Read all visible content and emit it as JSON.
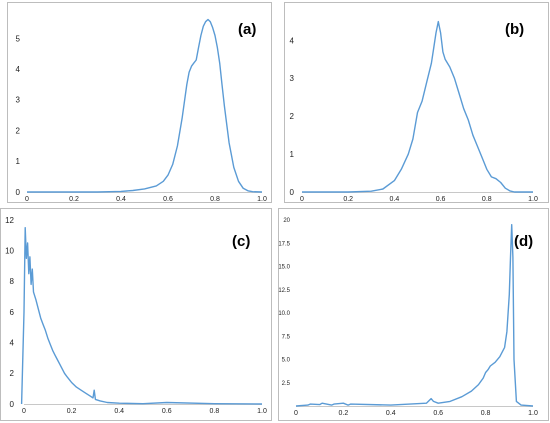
{
  "chart_data": [
    {
      "type": "line",
      "panel_label": "(a)",
      "xlim": [
        0,
        1.0
      ],
      "ylim": [
        0,
        5.8
      ],
      "x_ticks": [
        0,
        0.2,
        0.4,
        0.6,
        0.8,
        1.0
      ],
      "x_tick_labels": [
        "0",
        "0.2",
        "0.4",
        "0.6",
        "0.8",
        "1.0"
      ],
      "y_ticks": [
        0,
        1,
        2,
        3,
        4,
        5
      ],
      "y_tick_labels": [
        "0",
        "1",
        "2",
        "3",
        "4",
        "5"
      ],
      "grid": false,
      "series": [
        {
          "color": "#5b9bd5",
          "x": [
            0.0,
            0.3,
            0.4,
            0.45,
            0.5,
            0.55,
            0.58,
            0.6,
            0.62,
            0.64,
            0.66,
            0.68,
            0.69,
            0.7,
            0.71,
            0.72,
            0.73,
            0.74,
            0.75,
            0.76,
            0.77,
            0.78,
            0.79,
            0.8,
            0.81,
            0.82,
            0.83,
            0.84,
            0.86,
            0.88,
            0.9,
            0.92,
            0.94,
            0.96,
            1.0
          ],
          "y": [
            0.0,
            0.0,
            0.02,
            0.05,
            0.1,
            0.2,
            0.35,
            0.55,
            0.9,
            1.5,
            2.4,
            3.5,
            3.9,
            4.1,
            4.2,
            4.3,
            4.7,
            5.1,
            5.4,
            5.55,
            5.62,
            5.55,
            5.35,
            5.1,
            4.7,
            4.2,
            3.5,
            2.8,
            1.6,
            0.8,
            0.35,
            0.12,
            0.04,
            0.01,
            0.0
          ]
        }
      ]
    },
    {
      "type": "line",
      "panel_label": "(b)",
      "xlim": [
        0,
        1.0
      ],
      "ylim": [
        0,
        4.7
      ],
      "x_ticks": [
        0,
        0.2,
        0.4,
        0.6,
        0.8,
        1.0
      ],
      "x_tick_labels": [
        "0",
        "0.2",
        "0.4",
        "0.6",
        "0.8",
        "1.0"
      ],
      "y_ticks": [
        0,
        1,
        2,
        3,
        4
      ],
      "y_tick_labels": [
        "0",
        "1",
        "2",
        "3",
        "4"
      ],
      "grid": false,
      "series": [
        {
          "color": "#5b9bd5",
          "x": [
            0.0,
            0.2,
            0.3,
            0.35,
            0.4,
            0.43,
            0.46,
            0.48,
            0.5,
            0.52,
            0.54,
            0.56,
            0.57,
            0.58,
            0.59,
            0.6,
            0.61,
            0.62,
            0.64,
            0.66,
            0.68,
            0.7,
            0.72,
            0.74,
            0.76,
            0.78,
            0.8,
            0.82,
            0.84,
            0.86,
            0.88,
            0.9,
            0.92,
            1.0
          ],
          "y": [
            0.0,
            0.0,
            0.02,
            0.08,
            0.3,
            0.6,
            1.0,
            1.4,
            2.1,
            2.4,
            2.9,
            3.4,
            3.8,
            4.2,
            4.5,
            4.2,
            3.7,
            3.5,
            3.3,
            3.0,
            2.6,
            2.2,
            1.9,
            1.5,
            1.2,
            0.9,
            0.6,
            0.4,
            0.35,
            0.25,
            0.1,
            0.03,
            0.0,
            0.0
          ]
        }
      ]
    },
    {
      "type": "line",
      "panel_label": "(c)",
      "xlim": [
        0,
        1.0
      ],
      "ylim": [
        0,
        12
      ],
      "x_ticks": [
        0,
        0.2,
        0.4,
        0.6,
        0.8,
        1.0
      ],
      "x_tick_labels": [
        "0",
        "0.2",
        "0.4",
        "0.6",
        "0.8",
        "1.0"
      ],
      "y_ticks": [
        0,
        2,
        4,
        6,
        8,
        10,
        12
      ],
      "y_tick_labels": [
        "0",
        "2",
        "4",
        "6",
        "8",
        "10",
        "12"
      ],
      "grid": false,
      "series": [
        {
          "color": "#5b9bd5",
          "x": [
            -0.01,
            0.0,
            0.005,
            0.01,
            0.015,
            0.02,
            0.025,
            0.03,
            0.035,
            0.04,
            0.05,
            0.06,
            0.07,
            0.08,
            0.09,
            0.1,
            0.11,
            0.12,
            0.13,
            0.14,
            0.15,
            0.16,
            0.17,
            0.18,
            0.2,
            0.22,
            0.24,
            0.26,
            0.28,
            0.29,
            0.295,
            0.3,
            0.32,
            0.35,
            0.4,
            0.5,
            0.6,
            0.8,
            1.0
          ],
          "y": [
            0.0,
            6.0,
            11.5,
            9.5,
            10.5,
            8.5,
            9.6,
            7.8,
            8.8,
            7.3,
            6.8,
            6.2,
            5.6,
            5.2,
            4.8,
            4.3,
            3.9,
            3.5,
            3.2,
            2.9,
            2.6,
            2.3,
            2.0,
            1.8,
            1.4,
            1.1,
            0.9,
            0.7,
            0.5,
            0.4,
            0.9,
            0.3,
            0.2,
            0.1,
            0.05,
            0.02,
            0.1,
            0.02,
            0.0
          ]
        }
      ]
    },
    {
      "type": "line",
      "panel_label": "(d)",
      "xlim": [
        0,
        1.0
      ],
      "ylim": [
        0,
        20
      ],
      "x_ticks": [
        0,
        0.2,
        0.4,
        0.6,
        0.8,
        1.0
      ],
      "x_tick_labels": [
        "0",
        "0.2",
        "0.4",
        "0.6",
        "0.8",
        "1.0"
      ],
      "y_ticks": [
        0,
        2.5,
        5,
        7.5,
        10,
        12.5,
        15,
        17.5,
        20
      ],
      "y_tick_labels": [
        "",
        "2.5",
        "5.0",
        "7.5",
        "10.0",
        "12.5",
        "15.0",
        "17.5",
        "20"
      ],
      "grid": false,
      "series": [
        {
          "color": "#5b9bd5",
          "x": [
            0.0,
            0.05,
            0.06,
            0.1,
            0.11,
            0.15,
            0.16,
            0.2,
            0.22,
            0.23,
            0.4,
            0.55,
            0.57,
            0.58,
            0.6,
            0.65,
            0.7,
            0.74,
            0.77,
            0.79,
            0.8,
            0.81,
            0.82,
            0.84,
            0.86,
            0.88,
            0.89,
            0.9,
            0.905,
            0.91,
            0.915,
            0.92,
            0.93,
            0.95,
            1.0
          ],
          "y": [
            0.0,
            0.1,
            0.2,
            0.15,
            0.3,
            0.1,
            0.2,
            0.3,
            0.1,
            0.2,
            0.1,
            0.3,
            0.8,
            0.5,
            0.3,
            0.5,
            1.0,
            1.6,
            2.3,
            3.0,
            3.6,
            3.9,
            4.3,
            4.7,
            5.3,
            6.3,
            8.0,
            12.0,
            16.0,
            19.5,
            16.0,
            5.0,
            0.5,
            0.1,
            0.0
          ]
        }
      ]
    }
  ]
}
